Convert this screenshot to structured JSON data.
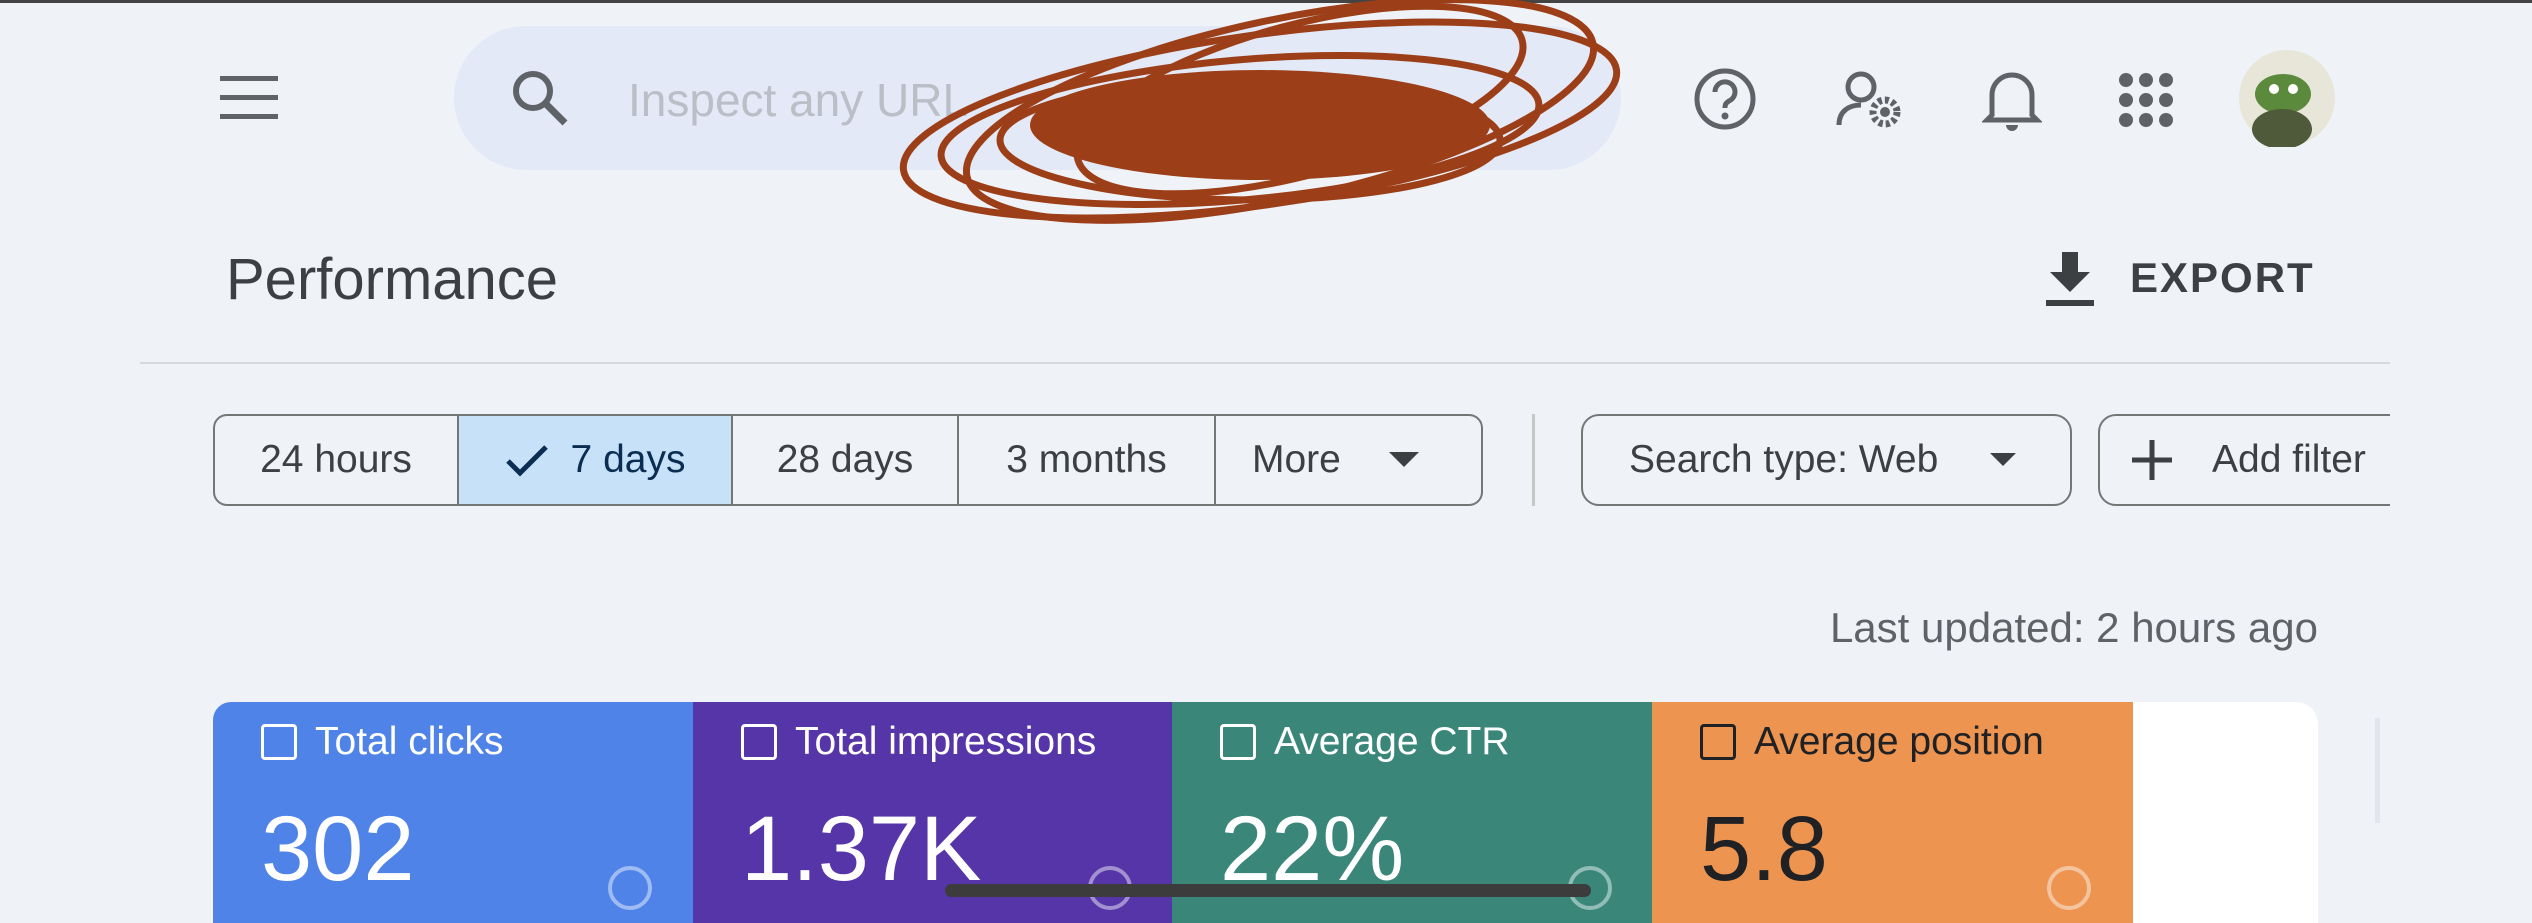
{
  "header": {
    "search_placeholder": "Inspect any URL",
    "page_title": "Performance",
    "export": "EXPORT"
  },
  "filters": {
    "date_ranges": [
      "24 hours",
      "7 days",
      "28 days",
      "3 months"
    ],
    "more": "More",
    "search_type": "Search type: Web",
    "add_filter": "Add filter"
  },
  "last_updated": "Last updated: 2 hours ago",
  "metrics": [
    {
      "label": "Total clicks",
      "value": "302"
    },
    {
      "label": "Total impressions",
      "value": "1.37K"
    },
    {
      "label": "Average CTR",
      "value": "22%"
    },
    {
      "label": "Average position",
      "value": "5.8"
    }
  ]
}
